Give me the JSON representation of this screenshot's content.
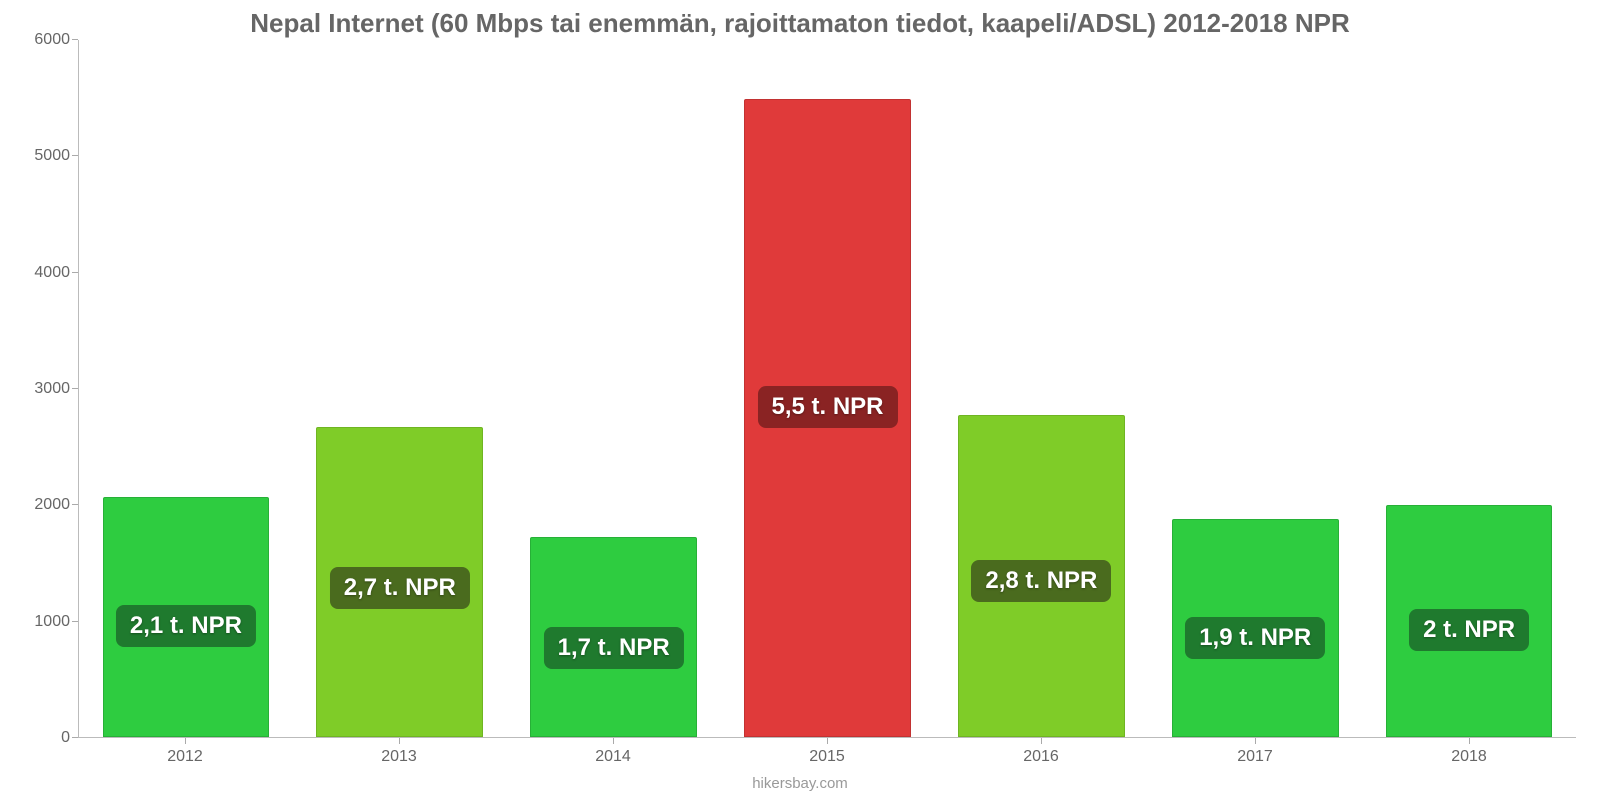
{
  "chart": {
    "type": "bar",
    "title": "Nepal Internet (60 Mbps tai enemmän, rajoittamaton tiedot, kaapeli/ADSL) 2012-2018 NPR",
    "title_fontsize": 26,
    "title_color": "#666666",
    "background_color": "#ffffff",
    "axis_color": "#bbbbbb",
    "tick_font_color": "#666666",
    "label_fontsize": 16,
    "ylim": [
      0,
      6000
    ],
    "ytick_step": 1000,
    "yticks": [
      0,
      1000,
      2000,
      3000,
      4000,
      5000,
      6000
    ],
    "categories": [
      "2012",
      "2013",
      "2014",
      "2015",
      "2016",
      "2017",
      "2018"
    ],
    "values": [
      2070,
      2670,
      1720,
      5490,
      2770,
      1880,
      2000
    ],
    "bar_colors": [
      "#2ecc40",
      "#7fcc28",
      "#2ecc40",
      "#e03a3a",
      "#7fcc28",
      "#2ecc40",
      "#2ecc40"
    ],
    "bar_borders": [
      "#27b037",
      "#6fb522",
      "#27b037",
      "#c23232",
      "#6fb522",
      "#27b037",
      "#27b037"
    ],
    "value_labels": [
      "2,1 t. NPR",
      "2,7 t. NPR",
      "1,7 t. NPR",
      "5,5 t. NPR",
      "2,8 t. NPR",
      "1,9 t. NPR",
      "2 t. NPR"
    ],
    "badge_colors": [
      "#1f7a2e",
      "#4a6b1e",
      "#1f7a2e",
      "#8a2323",
      "#4a6b1e",
      "#1f7a2e",
      "#1f7a2e"
    ],
    "bar_width_ratio": 0.78,
    "value_label_fontsize": 24,
    "footer": "hikersbay.com",
    "footer_color": "#999999"
  }
}
